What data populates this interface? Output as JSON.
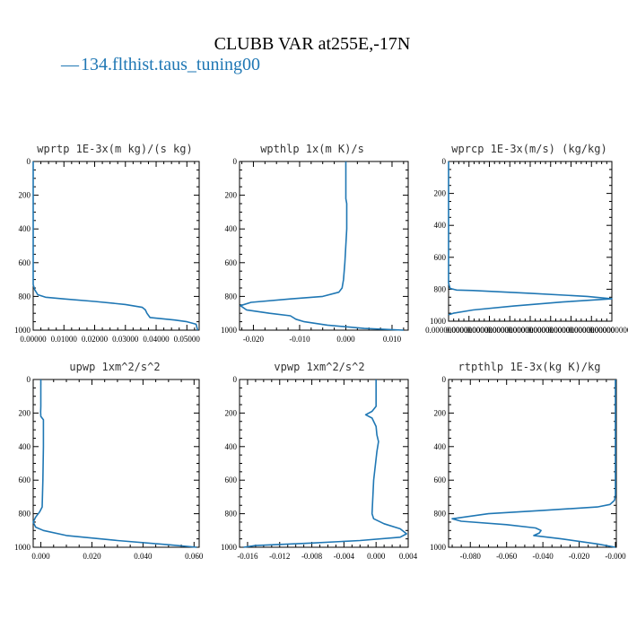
{
  "title": "CLUBB VAR at255E,-17N",
  "legend": {
    "dash": "—",
    "label": "134.flthist.taus_tuning00",
    "color": "#1f77b4"
  },
  "chart_data": [
    {
      "type": "line",
      "title": "wprtp  1E-3x(m kg)/(s kg)",
      "xlim": [
        0,
        0.054
      ],
      "ylim": [
        1000,
        0
      ],
      "xticks": [
        0.0,
        0.01,
        0.02,
        0.03,
        0.04,
        0.05
      ],
      "xtick_labels": [
        "0.00000",
        "0.01000",
        "0.02000",
        "0.03000",
        "0.04000",
        "0.05000"
      ],
      "yticks": [
        0,
        200,
        400,
        600,
        800,
        1000
      ],
      "ytick_labels": [
        "0",
        "200",
        "400",
        "600",
        "800",
        "1000"
      ],
      "series": [
        {
          "x": [
            0.0,
            0.0,
            0.0005,
            0.0015,
            0.004,
            0.01,
            0.02,
            0.03,
            0.0355,
            0.0365,
            0.037,
            0.038,
            0.046,
            0.05,
            0.053,
            0.0535
          ],
          "y": [
            0,
            730,
            760,
            790,
            805,
            815,
            830,
            848,
            865,
            880,
            900,
            925,
            940,
            950,
            965,
            1000
          ]
        }
      ]
    },
    {
      "type": "line",
      "title": "wpthlp  1x(m K)/s",
      "xlim": [
        -0.023,
        0.0135
      ],
      "ylim": [
        1000,
        0
      ],
      "xticks": [
        -0.02,
        -0.01,
        0.0,
        0.01
      ],
      "xtick_labels": [
        "-0.020",
        "-0.010",
        "0.000",
        "0.010"
      ],
      "yticks": [
        0,
        200,
        400,
        600,
        800,
        1000
      ],
      "ytick_labels": [
        "0",
        "200",
        "400",
        "600",
        "800",
        "1000"
      ],
      "series": [
        {
          "x": [
            0.0,
            0.0,
            0.0002,
            0.0002,
            -0.0002,
            -0.0005,
            -0.0008,
            -0.0015,
            -0.005,
            -0.012,
            -0.0205,
            -0.0228,
            -0.0215,
            -0.0165,
            -0.012,
            -0.0108,
            -0.009,
            -0.004,
            0.004,
            0.0125
          ],
          "y": [
            0,
            220,
            250,
            400,
            600,
            700,
            750,
            775,
            800,
            815,
            835,
            855,
            880,
            900,
            915,
            935,
            950,
            970,
            990,
            1000
          ]
        }
      ]
    },
    {
      "type": "line",
      "title": "wprcp  1E-3x(m/s) (kg/kg)",
      "xlim": [
        0,
        1e-10
      ],
      "ylim": [
        1000,
        0
      ],
      "xticks": [
        0,
        1.25e-11,
        2.5e-11,
        3.75e-11,
        5e-11,
        6.25e-11,
        7.5e-11,
        8.75e-11,
        1e-10
      ],
      "xtick_labels": [
        "0.0000000000",
        "0.0000000000",
        "0.0000000000",
        "0.0000000000",
        "0.0000000000",
        "0.0000000000",
        "0.0000000000",
        "0.0000000000",
        "0.0000000000"
      ],
      "yticks": [
        0,
        200,
        400,
        600,
        800,
        1000
      ],
      "ytick_labels": [
        "0",
        "200",
        "400",
        "600",
        "800",
        "1000"
      ],
      "series": [
        {
          "x": [
            0,
            0,
            5e-13,
            1e-12,
            5e-12,
            1.5e-11,
            5e-11,
            8.5e-11,
            1e-10,
            7e-11,
            4e-11,
            1.5e-11,
            3e-12,
            0
          ],
          "y": [
            0,
            760,
            780,
            795,
            805,
            808,
            825,
            845,
            860,
            880,
            905,
            930,
            950,
            960
          ]
        }
      ]
    },
    {
      "type": "line",
      "title": "upwp  1xm^2/s^2",
      "xlim": [
        -0.003,
        0.062
      ],
      "ylim": [
        1000,
        0
      ],
      "xticks": [
        0.0,
        0.02,
        0.04,
        0.06
      ],
      "xtick_labels": [
        "0.000",
        "0.020",
        "0.040",
        "0.060"
      ],
      "yticks": [
        0,
        200,
        400,
        600,
        800,
        1000
      ],
      "ytick_labels": [
        "0",
        "200",
        "400",
        "600",
        "800",
        "1000"
      ],
      "series": [
        {
          "x": [
            0.0,
            0.0,
            -0.0001,
            0.0,
            0.001,
            0.001,
            0.0008,
            0.0005,
            -0.0005,
            -0.002,
            -0.003,
            -0.002,
            0.001,
            0.01,
            0.03,
            0.05,
            0.061
          ],
          "y": [
            0,
            160,
            195,
            220,
            240,
            400,
            600,
            760,
            790,
            820,
            850,
            880,
            900,
            930,
            960,
            985,
            1000
          ]
        }
      ]
    },
    {
      "type": "line",
      "title": "vpwp  1xm^2/s^2",
      "xlim": [
        -0.017,
        0.004
      ],
      "ylim": [
        1000,
        0
      ],
      "xticks": [
        -0.016,
        -0.012,
        -0.008,
        -0.004,
        0.0,
        0.004
      ],
      "xtick_labels": [
        "-0.016",
        "-0.012",
        "-0.008",
        "-0.004",
        "0.000",
        "0.004"
      ],
      "yticks": [
        0,
        200,
        400,
        600,
        800,
        1000
      ],
      "ytick_labels": [
        "0",
        "200",
        "400",
        "600",
        "800",
        "1000"
      ],
      "series": [
        {
          "x": [
            0.0,
            0.0,
            -0.0005,
            -0.0013,
            -0.0005,
            0.0,
            0.0001,
            0.0003,
            0.0001,
            -0.0003,
            -0.0005,
            -0.0003,
            0.001,
            0.003,
            0.0038,
            0.003,
            -0.002,
            -0.008,
            -0.015,
            -0.0165
          ],
          "y": [
            0,
            160,
            190,
            210,
            230,
            280,
            330,
            370,
            430,
            600,
            800,
            830,
            860,
            890,
            920,
            940,
            960,
            975,
            990,
            1000
          ]
        }
      ]
    },
    {
      "type": "line",
      "title": "rtpthlp  1E-3x(kg K)/kg",
      "xlim": [
        -0.092,
        0.0005
      ],
      "ylim": [
        1000,
        0
      ],
      "xticks": [
        -0.08,
        -0.06,
        -0.04,
        -0.02,
        0.0
      ],
      "xtick_labels": [
        "-0.080",
        "-0.060",
        "-0.040",
        "-0.020",
        "-0.000"
      ],
      "yticks": [
        0,
        200,
        400,
        600,
        800,
        1000
      ],
      "ytick_labels": [
        "0",
        "200",
        "400",
        "600",
        "800",
        "1000"
      ],
      "series": [
        {
          "x": [
            0.0,
            0.0,
            -0.0005,
            -0.003,
            -0.01,
            -0.04,
            -0.07,
            -0.09,
            -0.085,
            -0.06,
            -0.044,
            -0.041,
            -0.042,
            -0.045,
            -0.03,
            -0.01,
            0.0
          ],
          "y": [
            0,
            690,
            720,
            745,
            760,
            780,
            800,
            830,
            845,
            865,
            885,
            900,
            915,
            930,
            950,
            980,
            1000
          ]
        }
      ]
    }
  ]
}
